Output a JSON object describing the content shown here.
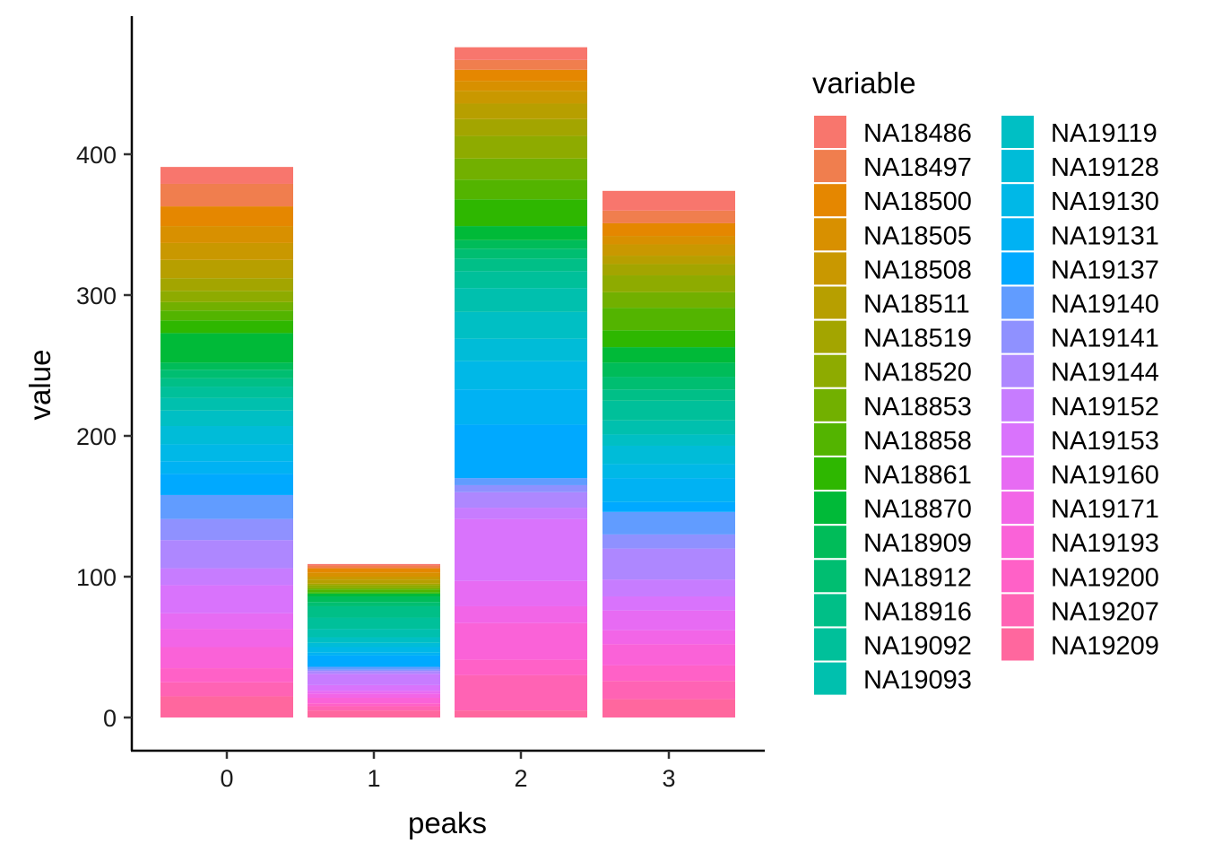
{
  "chart_data": {
    "type": "bar",
    "stacked": true,
    "categories": [
      "0",
      "1",
      "2",
      "3"
    ],
    "xlabel": "peaks",
    "ylabel": "value",
    "ylim": [
      0,
      500
    ],
    "yticks": [
      0,
      100,
      200,
      300,
      400
    ],
    "legend": {
      "title": "variable",
      "position": "right",
      "columns": 2
    },
    "series": [
      {
        "name": "NA18486",
        "color": "#F8766D",
        "values": [
          12,
          1,
          9,
          14
        ]
      },
      {
        "name": "NA18497",
        "color": "#F07E4E",
        "values": [
          16,
          2,
          7,
          9
        ]
      },
      {
        "name": "NA18500",
        "color": "#E58700",
        "values": [
          14,
          3,
          8,
          9
        ]
      },
      {
        "name": "NA18505",
        "color": "#D89000",
        "values": [
          12,
          3,
          7,
          6
        ]
      },
      {
        "name": "NA18508",
        "color": "#C99800",
        "values": [
          12,
          2,
          9,
          8
        ]
      },
      {
        "name": "NA18511",
        "color": "#B79F00",
        "values": [
          13,
          3,
          11,
          6
        ]
      },
      {
        "name": "NA18519",
        "color": "#A3A500",
        "values": [
          9,
          1,
          12,
          8
        ]
      },
      {
        "name": "NA18520",
        "color": "#8EAB00",
        "values": [
          8,
          2,
          16,
          12
        ]
      },
      {
        "name": "NA18853",
        "color": "#72B000",
        "values": [
          6,
          1,
          15,
          11
        ]
      },
      {
        "name": "NA18858",
        "color": "#53B400",
        "values": [
          7,
          2,
          14,
          16
        ]
      },
      {
        "name": "NA18861",
        "color": "#2EB700",
        "values": [
          9,
          1,
          19,
          12
        ]
      },
      {
        "name": "NA18870",
        "color": "#00BA38",
        "values": [
          21,
          2,
          10,
          11
        ]
      },
      {
        "name": "NA18909",
        "color": "#00BC59",
        "values": [
          5,
          4,
          6,
          10
        ]
      },
      {
        "name": "NA18912",
        "color": "#00BE71",
        "values": [
          6,
          3,
          7,
          9
        ]
      },
      {
        "name": "NA18916",
        "color": "#00BF87",
        "values": [
          6,
          8,
          9,
          8
        ]
      },
      {
        "name": "NA19092",
        "color": "#00C09A",
        "values": [
          8,
          8,
          12,
          14
        ]
      },
      {
        "name": "NA19093",
        "color": "#00C0AE",
        "values": [
          9,
          6,
          17,
          10
        ]
      },
      {
        "name": "NA19119",
        "color": "#00BFC4",
        "values": [
          11,
          4,
          19,
          8
        ]
      },
      {
        "name": "NA19128",
        "color": "#00BCD8",
        "values": [
          13,
          3,
          16,
          13
        ]
      },
      {
        "name": "NA19130",
        "color": "#00B8E7",
        "values": [
          12,
          4,
          20,
          10
        ]
      },
      {
        "name": "NA19131",
        "color": "#00B2F3",
        "values": [
          9,
          2,
          25,
          17
        ]
      },
      {
        "name": "NA19137",
        "color": "#00A9FF",
        "values": [
          15,
          8,
          38,
          7
        ]
      },
      {
        "name": "NA19140",
        "color": "#619CFF",
        "values": [
          17,
          2,
          5,
          16
        ]
      },
      {
        "name": "NA19141",
        "color": "#8F91FF",
        "values": [
          15,
          1,
          5,
          10
        ]
      },
      {
        "name": "NA19144",
        "color": "#AE87FF",
        "values": [
          20,
          2,
          11,
          22
        ]
      },
      {
        "name": "NA19152",
        "color": "#C77CFF",
        "values": [
          12,
          8,
          8,
          12
        ]
      },
      {
        "name": "NA19153",
        "color": "#D973FC",
        "values": [
          20,
          4,
          44,
          10
        ]
      },
      {
        "name": "NA19160",
        "color": "#E76BF3",
        "values": [
          11,
          2,
          18,
          14
        ]
      },
      {
        "name": "NA19171",
        "color": "#F265E7",
        "values": [
          13,
          3,
          12,
          10
        ]
      },
      {
        "name": "NA19193",
        "color": "#FA62D8",
        "values": [
          15,
          4,
          26,
          15
        ]
      },
      {
        "name": "NA19200",
        "color": "#FF61C7",
        "values": [
          10,
          2,
          11,
          11
        ]
      },
      {
        "name": "NA19207",
        "color": "#FF63B4",
        "values": [
          10,
          3,
          25,
          13
        ]
      },
      {
        "name": "NA19209",
        "color": "#FF679E",
        "values": [
          15,
          5,
          5,
          13
        ]
      }
    ]
  }
}
